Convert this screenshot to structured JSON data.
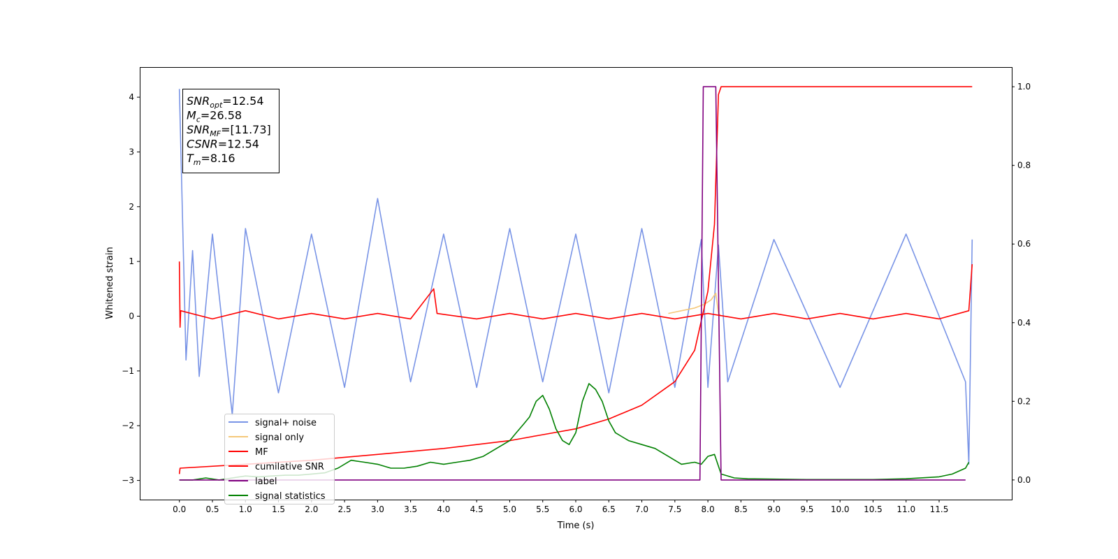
{
  "chart_data": {
    "type": "line",
    "title": "",
    "xlabel": "Time (s)",
    "ylabel": "Whitened strain",
    "xlim": [
      -0.6,
      12.6
    ],
    "ylim": [
      -3.35,
      4.55
    ],
    "y2lim": [
      -0.05,
      1.05
    ],
    "x_ticks": [
      "0.0",
      "0.5",
      "1.0",
      "1.5",
      "2.0",
      "2.5",
      "3.0",
      "3.5",
      "4.0",
      "4.5",
      "5.0",
      "5.5",
      "6.0",
      "6.5",
      "7.0",
      "7.5",
      "8.0",
      "8.5",
      "9.0",
      "9.5",
      "10.0",
      "10.5",
      "11.0",
      "11.5"
    ],
    "y_ticks": [
      "−3",
      "−2",
      "−1",
      "0",
      "1",
      "2",
      "3",
      "4"
    ],
    "y2_ticks": [
      "0.0",
      "0.2",
      "0.4",
      "0.6",
      "0.8",
      "1.0"
    ],
    "grid": false,
    "legend_position": "lower-left",
    "annotation": {
      "lines": [
        {
          "sym": "SNR",
          "sub": "opt",
          "value": "=12.54"
        },
        {
          "sym": "M",
          "sub": "c",
          "value": "=26.58"
        },
        {
          "sym": "SNR",
          "sub": "MF",
          "value": "=[11.73]"
        },
        {
          "sym": "CSNR",
          "sub": "",
          "value": "=12.54"
        },
        {
          "sym": "T",
          "sub": "m",
          "value": "=8.16"
        }
      ]
    },
    "series": [
      {
        "name": "signal+ noise",
        "color": "#7994e6",
        "axis": "left",
        "x": [
          0.0,
          0.1,
          0.2,
          0.3,
          0.5,
          0.8,
          1.0,
          1.5,
          2.0,
          2.5,
          3.0,
          3.5,
          4.0,
          4.5,
          5.0,
          5.5,
          6.0,
          6.5,
          7.0,
          7.5,
          7.9,
          8.0,
          8.16,
          8.3,
          9.0,
          10.0,
          11.0,
          11.9,
          11.95,
          12.0
        ],
        "y": [
          4.15,
          -0.8,
          1.2,
          -1.1,
          1.5,
          -1.8,
          1.6,
          -1.4,
          1.5,
          -1.3,
          2.15,
          -1.2,
          1.5,
          -1.3,
          1.6,
          -1.2,
          1.5,
          -1.4,
          1.6,
          -1.3,
          1.4,
          -1.3,
          1.3,
          -1.2,
          1.4,
          -1.3,
          1.5,
          -1.2,
          -2.7,
          1.4
        ]
      },
      {
        "name": "signal only",
        "color": "#f5c87a",
        "axis": "left",
        "x": [
          7.4,
          7.6,
          7.8,
          7.95,
          8.05,
          8.12,
          8.16,
          8.2
        ],
        "y": [
          0.05,
          0.1,
          0.15,
          0.22,
          0.3,
          0.42,
          0.05,
          0.0
        ]
      },
      {
        "name": "MF",
        "color": "#ff0000",
        "axis": "left",
        "x": [
          0.0,
          0.01,
          0.02,
          0.5,
          1.0,
          1.5,
          2.0,
          2.5,
          3.0,
          3.5,
          3.85,
          3.9,
          4.5,
          5.0,
          5.5,
          6.0,
          6.5,
          7.0,
          7.5,
          8.0,
          8.5,
          9.0,
          9.5,
          10.0,
          10.5,
          11.0,
          11.5,
          11.95,
          12.0
        ],
        "y": [
          1.0,
          -0.2,
          0.1,
          -0.05,
          0.1,
          -0.05,
          0.05,
          -0.05,
          0.05,
          -0.05,
          0.5,
          0.05,
          -0.05,
          0.05,
          -0.05,
          0.05,
          -0.05,
          0.05,
          -0.05,
          0.05,
          -0.05,
          0.05,
          -0.05,
          0.05,
          -0.05,
          0.05,
          -0.05,
          0.1,
          0.95
        ]
      },
      {
        "name": "cumilative SNR",
        "color": "#ff0000",
        "axis": "right",
        "x": [
          0.0,
          0.01,
          1.0,
          2.0,
          3.0,
          4.0,
          5.0,
          5.5,
          6.0,
          6.5,
          7.0,
          7.5,
          7.8,
          8.0,
          8.1,
          8.16,
          8.2,
          9.0,
          10.0,
          11.0,
          12.0
        ],
        "y": [
          0.015,
          0.03,
          0.04,
          0.05,
          0.065,
          0.08,
          0.1,
          0.115,
          0.13,
          0.155,
          0.19,
          0.25,
          0.33,
          0.48,
          0.65,
          0.98,
          1.0,
          1.0,
          1.0,
          1.0,
          1.0
        ]
      },
      {
        "name": "label",
        "color": "#800080",
        "axis": "right",
        "x": [
          0.0,
          7.88,
          7.93,
          8.12,
          8.2,
          11.9
        ],
        "y": [
          0.0,
          0.0,
          1.0,
          1.0,
          0.0,
          0.0
        ]
      },
      {
        "name": "signal statistics",
        "color": "#008000",
        "axis": "right",
        "x": [
          0.0,
          0.2,
          0.4,
          0.6,
          0.8,
          1.0,
          1.2,
          1.4,
          1.6,
          1.8,
          2.0,
          2.2,
          2.4,
          2.6,
          2.8,
          3.0,
          3.2,
          3.4,
          3.6,
          3.8,
          4.0,
          4.2,
          4.4,
          4.6,
          4.8,
          5.0,
          5.1,
          5.2,
          5.3,
          5.4,
          5.5,
          5.6,
          5.7,
          5.8,
          5.9,
          6.0,
          6.1,
          6.2,
          6.3,
          6.4,
          6.5,
          6.6,
          6.7,
          6.8,
          7.0,
          7.2,
          7.4,
          7.6,
          7.8,
          7.9,
          8.0,
          8.1,
          8.2,
          8.4,
          8.6,
          9.0,
          9.5,
          10.0,
          10.5,
          11.0,
          11.5,
          11.7,
          11.9,
          11.95
        ],
        "y": [
          0.0,
          0.0,
          0.005,
          0.0,
          0.005,
          0.01,
          0.008,
          0.01,
          0.012,
          0.012,
          0.015,
          0.018,
          0.03,
          0.05,
          0.045,
          0.04,
          0.03,
          0.03,
          0.035,
          0.045,
          0.04,
          0.045,
          0.05,
          0.06,
          0.08,
          0.1,
          0.12,
          0.14,
          0.16,
          0.2,
          0.215,
          0.18,
          0.13,
          0.1,
          0.09,
          0.12,
          0.2,
          0.245,
          0.23,
          0.2,
          0.15,
          0.12,
          0.11,
          0.1,
          0.09,
          0.08,
          0.06,
          0.04,
          0.045,
          0.04,
          0.06,
          0.065,
          0.015,
          0.005,
          0.003,
          0.002,
          0.001,
          0.001,
          0.001,
          0.003,
          0.008,
          0.015,
          0.03,
          0.045
        ]
      }
    ]
  }
}
